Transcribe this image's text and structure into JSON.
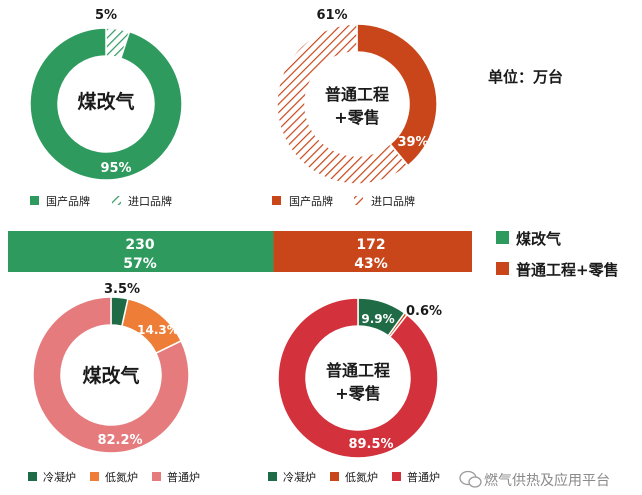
{
  "unit_label": "单位：万台",
  "watermark": "燃气供热及应用平台",
  "colors": {
    "green": "#2E9A5E",
    "orange_red": "#C8461A",
    "dark_green": "#1F6B46",
    "orange": "#EE7D37",
    "pink": "#E67B7E",
    "red": "#D3313C",
    "text_dark": "#1a1a1a"
  },
  "chart_data": [
    {
      "type": "pie",
      "subtype": "donut",
      "title": "煤改气",
      "categories": [
        "国产品牌",
        "进口品牌"
      ],
      "values": [
        95,
        5
      ],
      "labels": [
        "95%",
        "5%"
      ],
      "legend": [
        "国产品牌",
        "进口品牌"
      ]
    },
    {
      "type": "pie",
      "subtype": "donut",
      "title": "普通工程\n+零售",
      "categories": [
        "国产品牌",
        "进口品牌"
      ],
      "values": [
        39,
        61
      ],
      "labels": [
        "39%",
        "61%"
      ],
      "legend": [
        "国产品牌",
        "进口品牌"
      ]
    },
    {
      "type": "bar",
      "orientation": "horizontal",
      "stacked": true,
      "series": [
        {
          "name": "煤改气",
          "value": 230,
          "percent": "57%"
        },
        {
          "name": "普通工程+零售",
          "value": 172,
          "percent": "43%"
        }
      ],
      "value_labels": [
        "230",
        "172"
      ],
      "percent_labels": [
        "57%",
        "43%"
      ],
      "legend": [
        "煤改气",
        "普通工程+零售"
      ]
    },
    {
      "type": "pie",
      "subtype": "donut",
      "title": "煤改气",
      "categories": [
        "冷凝炉",
        "低氮炉",
        "普通炉"
      ],
      "values": [
        3.5,
        14.3,
        82.2
      ],
      "labels": [
        "3.5%",
        "14.3%",
        "82.2%"
      ],
      "legend": [
        "冷凝炉",
        "低氮炉",
        "普通炉"
      ]
    },
    {
      "type": "pie",
      "subtype": "donut",
      "title": "普通工程\n+零售",
      "categories": [
        "冷凝炉",
        "低氮炉",
        "普通炉"
      ],
      "values": [
        9.9,
        0.6,
        89.5
      ],
      "labels": [
        "9.9%",
        "0.6%",
        "89.5%"
      ],
      "legend": [
        "冷凝炉",
        "低氮炉",
        "普通炉"
      ]
    }
  ]
}
